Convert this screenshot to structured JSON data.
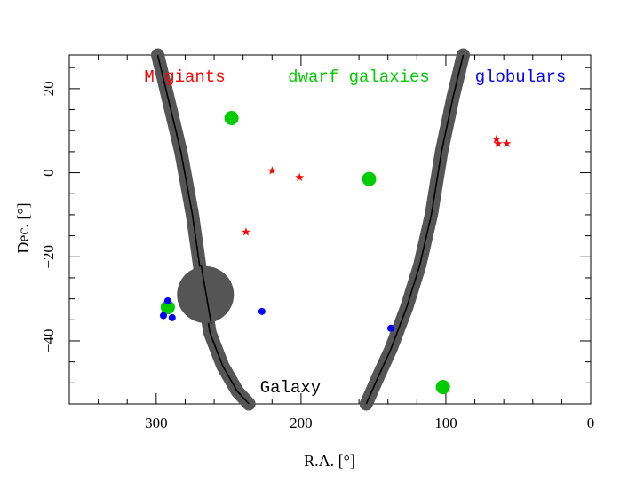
{
  "chart_data": {
    "type": "scatter",
    "xlabel": "R.A. [°]",
    "ylabel": "Dec. [°]",
    "xlim": [
      360,
      0
    ],
    "ylim": [
      -55,
      28
    ],
    "x_ticks": [
      "300",
      "200",
      "100",
      "0"
    ],
    "x_tick_values": [
      300,
      200,
      100,
      0
    ],
    "y_ticks": [
      "20",
      "0",
      "−20",
      "−40"
    ],
    "y_tick_values": [
      20,
      0,
      -20,
      -40
    ],
    "legend": [
      {
        "label": "M giants",
        "color": "#ff0000"
      },
      {
        "label": "dwarf galaxies",
        "color": "#00cc00"
      },
      {
        "label": "globulars",
        "color": "#0000ff"
      }
    ],
    "colors": {
      "m_giants": "#ff0000",
      "dwarf_galaxies": "#00cc00",
      "globulars": "#0000ff",
      "galaxy": "#555555"
    },
    "galaxy_label": "Galaxy",
    "galaxy_center": {
      "x": 266,
      "y": -29
    },
    "series": [
      {
        "name": "M giants",
        "marker": "star",
        "points": [
          [
            220,
            0.5
          ],
          [
            201,
            -1
          ],
          [
            238,
            -14
          ],
          [
            65,
            8
          ],
          [
            64,
            7
          ],
          [
            58,
            7
          ]
        ]
      },
      {
        "name": "dwarf galaxies",
        "marker": "circle",
        "points": [
          [
            248,
            13
          ],
          [
            153,
            -1.5
          ],
          [
            102,
            -51
          ],
          [
            292,
            -32
          ]
        ]
      },
      {
        "name": "globulars",
        "marker": "dot",
        "points": [
          [
            292,
            -30.5
          ],
          [
            295,
            -34
          ],
          [
            289,
            -34.5
          ],
          [
            227,
            -33
          ],
          [
            138,
            -37
          ]
        ]
      }
    ],
    "galaxy_band_left": [
      [
        299,
        28
      ],
      [
        292,
        18
      ],
      [
        283,
        5
      ],
      [
        275,
        -10
      ],
      [
        268,
        -27
      ],
      [
        263,
        -38
      ],
      [
        254,
        -46
      ],
      [
        244,
        -52
      ],
      [
        236,
        -55
      ]
    ],
    "galaxy_band_right": [
      [
        88,
        28
      ],
      [
        95,
        18
      ],
      [
        103,
        5
      ],
      [
        110,
        -10
      ],
      [
        118,
        -22
      ],
      [
        127,
        -32
      ],
      [
        138,
        -42
      ],
      [
        146,
        -48
      ],
      [
        155,
        -55
      ]
    ]
  }
}
